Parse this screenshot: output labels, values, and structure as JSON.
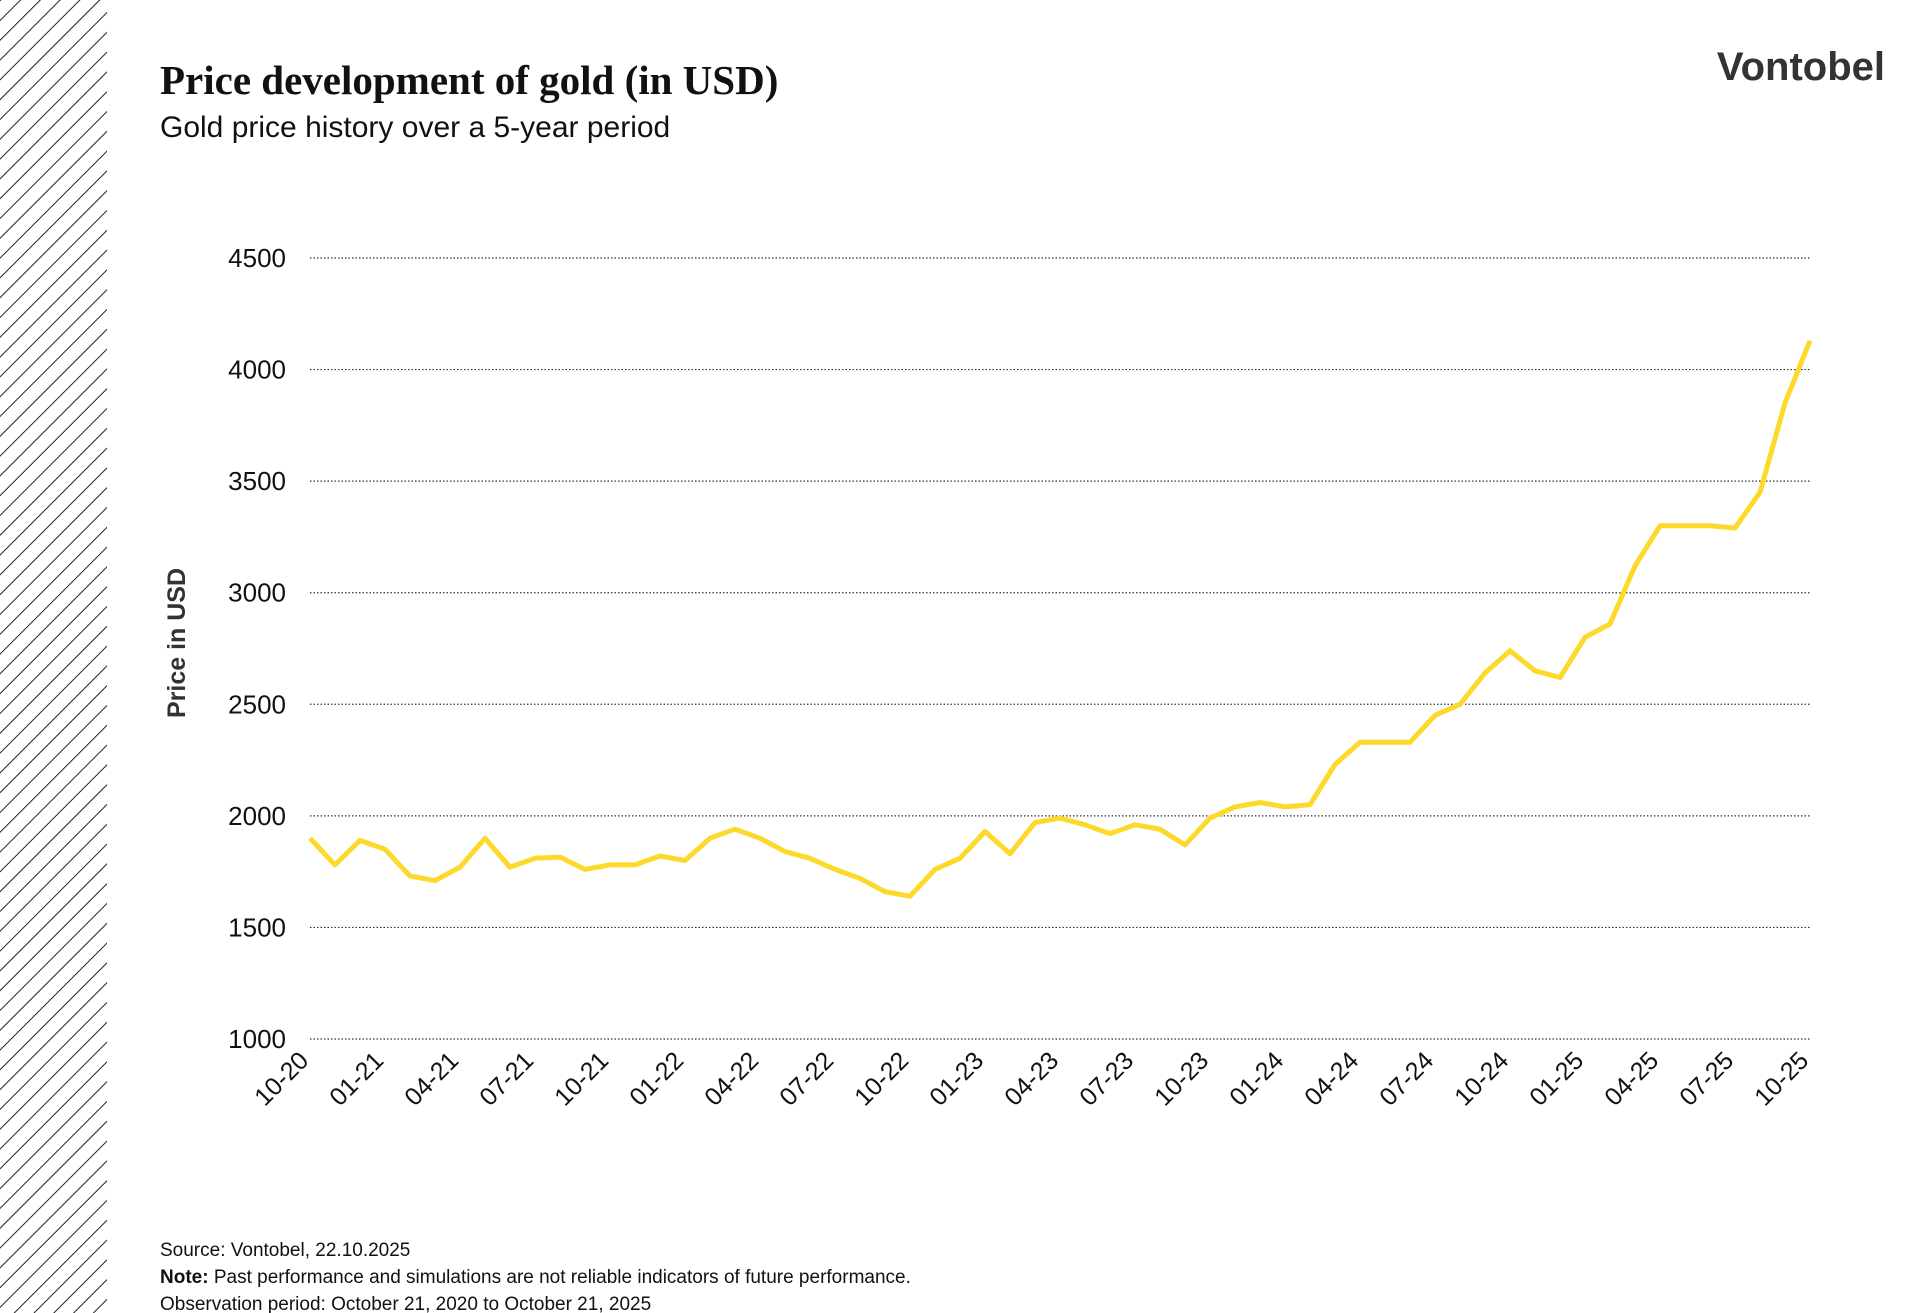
{
  "chart_data": {
    "type": "line",
    "title": "Price development of gold (in USD)",
    "subtitle": "Gold price history over a 5-year period",
    "brand": "Vontobel",
    "y_label": "Price in USD",
    "source": "Source: Vontobel, 22.10.2025",
    "note_label": "Note:",
    "note": "Past performance and simulations are not reliable indicators of future performance.",
    "observation": "Observation period: October 21, 2020 to October 21, 2025",
    "categories": [
      "10-20",
      null,
      null,
      "01-21",
      null,
      null,
      "04-21",
      null,
      null,
      "07-21",
      null,
      null,
      "10-21",
      null,
      null,
      "01-22",
      null,
      null,
      "04-22",
      null,
      null,
      "07-22",
      null,
      null,
      "10-22",
      null,
      null,
      "01-23",
      null,
      null,
      "04-23",
      null,
      null,
      "07-23",
      null,
      null,
      "10-23",
      null,
      null,
      "01-24",
      null,
      null,
      "04-24",
      null,
      null,
      "07-24",
      null,
      null,
      "10-24",
      null,
      null,
      "01-25",
      null,
      null,
      "04-25",
      null,
      null,
      "07-25",
      null,
      null,
      "10-25"
    ],
    "series": [
      {
        "name": "Gold price",
        "color": "#fcd92a",
        "values": [
          1900,
          1780,
          1890,
          1850,
          1730,
          1710,
          1770,
          1900,
          1770,
          1810,
          1815,
          1760,
          1780,
          1780,
          1820,
          1800,
          1900,
          1940,
          1900,
          1840,
          1810,
          1760,
          1720,
          1660,
          1640,
          1760,
          1810,
          1930,
          1830,
          1970,
          1990,
          1960,
          1920,
          1960,
          1940,
          1870,
          1990,
          2040,
          2060,
          2040,
          2050,
          2230,
          2330,
          2330,
          2330,
          2450,
          2500,
          2640,
          2740,
          2650,
          2620,
          2800,
          2860,
          3120,
          3300,
          3300,
          3300,
          3290,
          3450,
          3850,
          4130
        ]
      }
    ],
    "ylim": [
      1000,
      4500
    ],
    "yticks": [
      1000,
      1500,
      2000,
      2500,
      3000,
      3500,
      4000,
      4500
    ],
    "grid": true
  }
}
